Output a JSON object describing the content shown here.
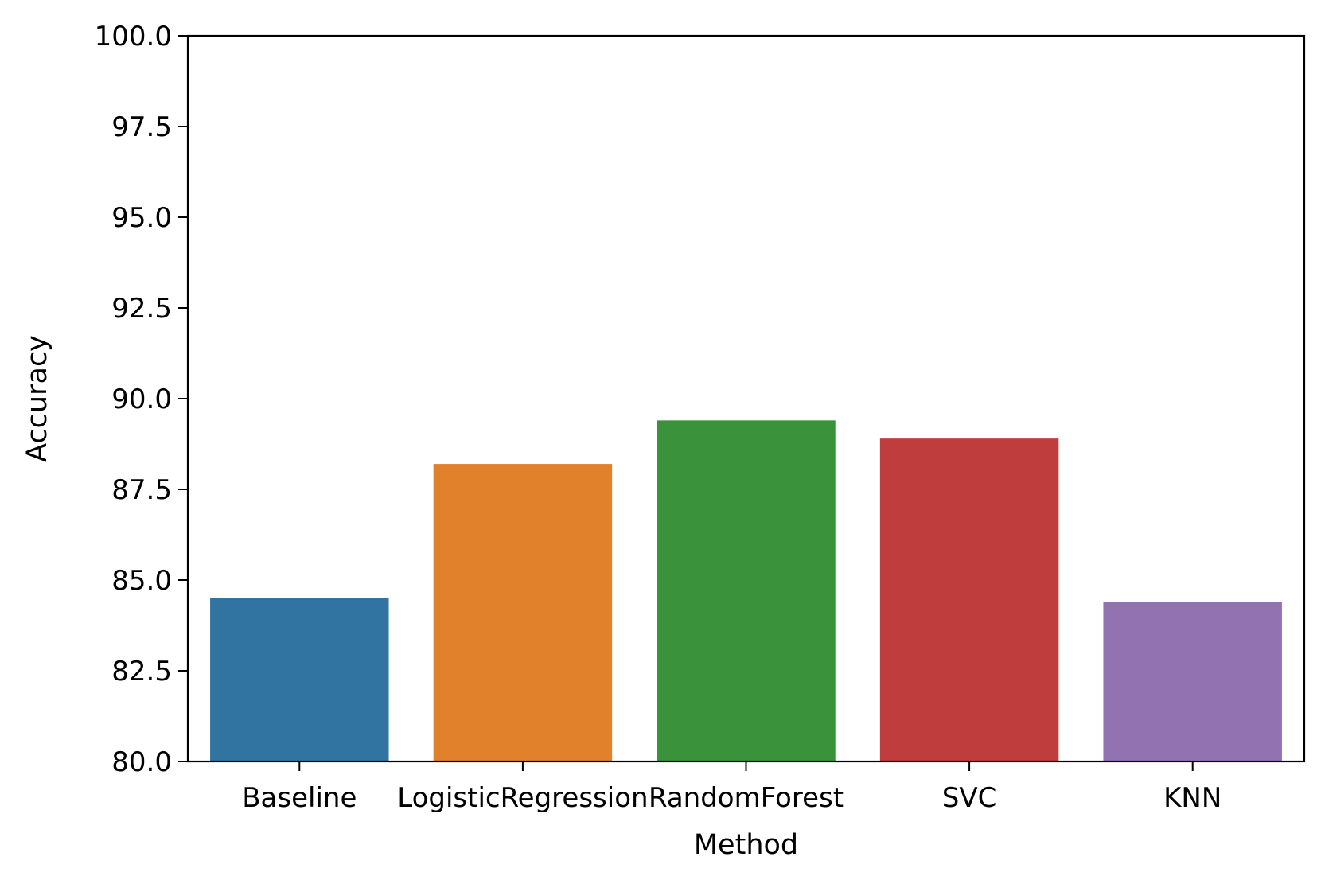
{
  "chart_data": {
    "type": "bar",
    "categories": [
      "Baseline",
      "LogisticRegression",
      "RandomForest",
      "SVC",
      "KNN"
    ],
    "values": [
      84.5,
      88.2,
      89.4,
      88.9,
      84.4
    ],
    "colors": [
      "#3274a1",
      "#e1812c",
      "#3a923a",
      "#c03d3e",
      "#9372b2"
    ],
    "title": "",
    "xlabel": "Method",
    "ylabel": "Accuracy",
    "ylim": [
      80.0,
      100.0
    ],
    "yticks": [
      "80.0",
      "82.5",
      "85.0",
      "87.5",
      "90.0",
      "92.5",
      "95.0",
      "97.5",
      "100.0"
    ],
    "grid": false,
    "legend": "none"
  }
}
